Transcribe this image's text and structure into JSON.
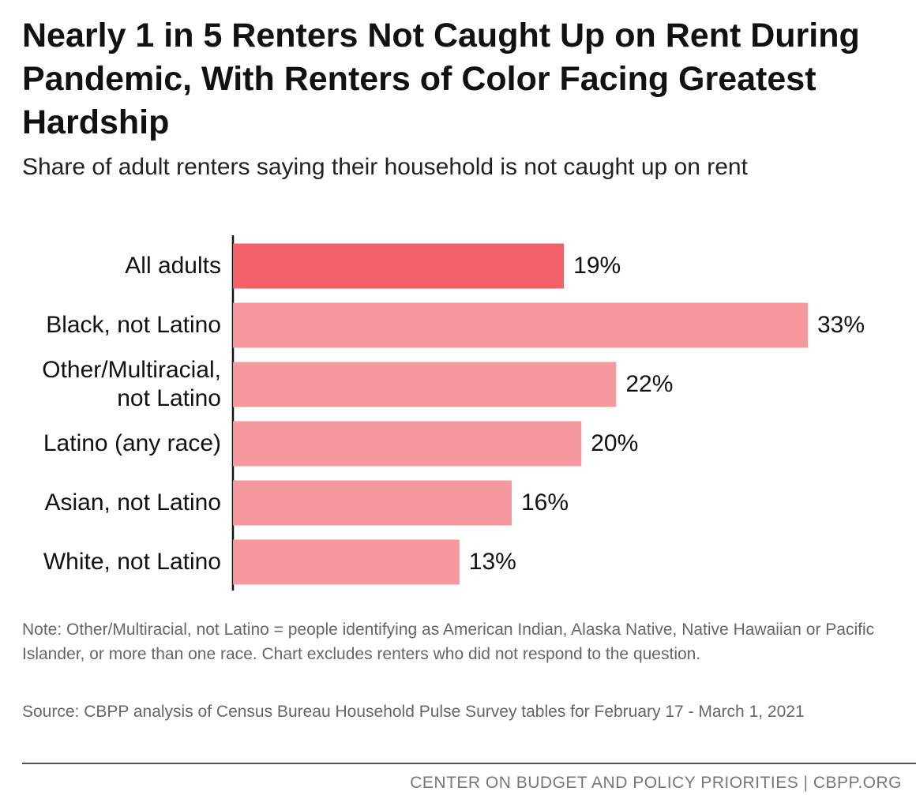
{
  "chart_data": {
    "type": "bar",
    "orientation": "horizontal",
    "title": "Nearly 1 in 5 Renters Not Caught Up on Rent During Pandemic, With Renters of Color Facing Greatest Hardship",
    "subtitle": "Share of adult renters saying their household is not caught up on rent",
    "categories": [
      "All adults",
      "Black, not Latino",
      "Other/Multiracial, not Latino",
      "Latino (any race)",
      "Asian, not Latino",
      "White, not Latino"
    ],
    "values": [
      19,
      33,
      22,
      20,
      16,
      13
    ],
    "value_labels": [
      "19%",
      "33%",
      "22%",
      "20%",
      "16%",
      "13%"
    ],
    "colors": [
      "#f2616a",
      "#f5999e",
      "#f5999e",
      "#f5999e",
      "#f5999e",
      "#f5999e"
    ],
    "note": "Note: Other/Multiracial, not Latino = people identifying as American Indian, Alaska Native, Native Hawaiian or Pacific Islander, or more than one race. Chart excludes renters who did not respond to the question.",
    "source": "Source: CBPP analysis of Census Bureau Household Pulse Survey tables for February 17 - March 1, 2021",
    "credit": "CENTER ON BUDGET AND POLICY PRIORITIES | CBPP.ORG"
  }
}
